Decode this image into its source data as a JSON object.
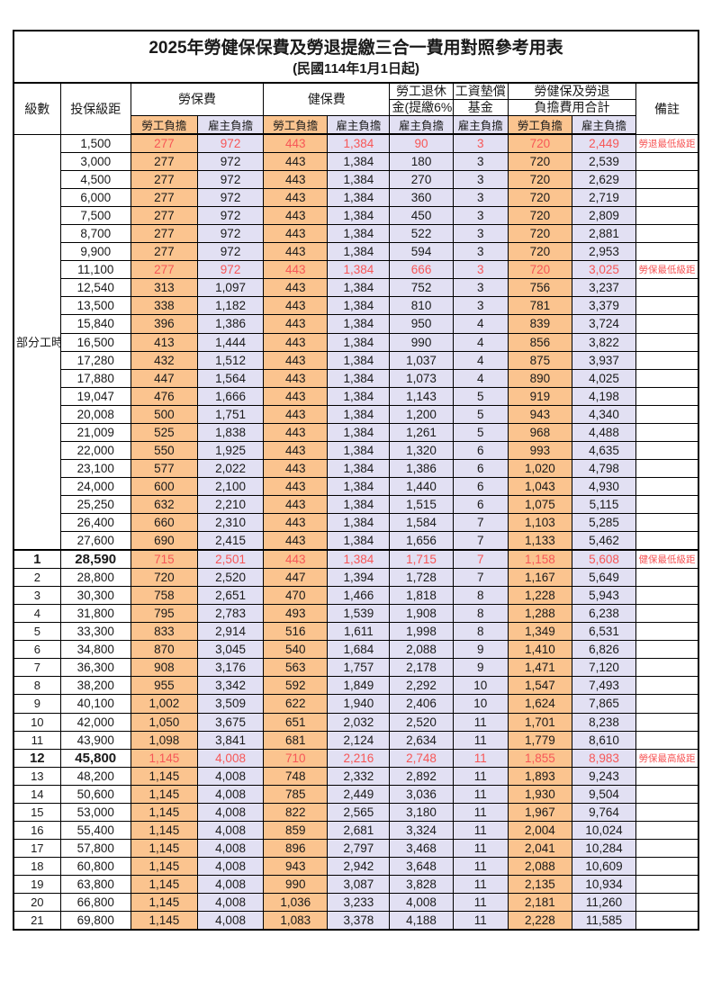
{
  "page": {
    "title": "2025年勞健保保費及勞退提繳三合一費用對照參考用表",
    "subtitle": "(民國114年1月1日起)"
  },
  "colors": {
    "employee_fill": "#FBC48F",
    "employer_fill": "#E2E0F3",
    "highlight_red": "#F75757"
  },
  "table": {
    "header": {
      "level": "級數",
      "bracket": "投保級距",
      "labor_fee": "勞保費",
      "health_fee": "健保費",
      "pension_line1": "勞工退休",
      "pension_line2": "金(提繳6%)",
      "wage_fund_line1": "工資墊償",
      "wage_fund_line2": "基金",
      "total_line1": "勞健保及勞退",
      "total_line2": "負擔費用合計",
      "remark": "備註",
      "employee": "勞工負擔",
      "employer": "雇主負擔"
    },
    "part_time_label": "部分工時",
    "part_time_rowspan": 23,
    "rows": [
      {
        "level": "",
        "bracket": "1,500",
        "li_emp": "277",
        "li_er": "972",
        "hi_emp": "443",
        "hi_er": "1,384",
        "pension": "90",
        "wage_fund": "3",
        "tot_emp": "720",
        "tot_er": "2,449",
        "remark": "勞退最低級距",
        "red": true
      },
      {
        "level": "",
        "bracket": "3,000",
        "li_emp": "277",
        "li_er": "972",
        "hi_emp": "443",
        "hi_er": "1,384",
        "pension": "180",
        "wage_fund": "3",
        "tot_emp": "720",
        "tot_er": "2,539",
        "remark": ""
      },
      {
        "level": "",
        "bracket": "4,500",
        "li_emp": "277",
        "li_er": "972",
        "hi_emp": "443",
        "hi_er": "1,384",
        "pension": "270",
        "wage_fund": "3",
        "tot_emp": "720",
        "tot_er": "2,629",
        "remark": ""
      },
      {
        "level": "",
        "bracket": "6,000",
        "li_emp": "277",
        "li_er": "972",
        "hi_emp": "443",
        "hi_er": "1,384",
        "pension": "360",
        "wage_fund": "3",
        "tot_emp": "720",
        "tot_er": "2,719",
        "remark": ""
      },
      {
        "level": "",
        "bracket": "7,500",
        "li_emp": "277",
        "li_er": "972",
        "hi_emp": "443",
        "hi_er": "1,384",
        "pension": "450",
        "wage_fund": "3",
        "tot_emp": "720",
        "tot_er": "2,809",
        "remark": ""
      },
      {
        "level": "",
        "bracket": "8,700",
        "li_emp": "277",
        "li_er": "972",
        "hi_emp": "443",
        "hi_er": "1,384",
        "pension": "522",
        "wage_fund": "3",
        "tot_emp": "720",
        "tot_er": "2,881",
        "remark": ""
      },
      {
        "level": "",
        "bracket": "9,900",
        "li_emp": "277",
        "li_er": "972",
        "hi_emp": "443",
        "hi_er": "1,384",
        "pension": "594",
        "wage_fund": "3",
        "tot_emp": "720",
        "tot_er": "2,953",
        "remark": ""
      },
      {
        "level": "",
        "bracket": "11,100",
        "li_emp": "277",
        "li_er": "972",
        "hi_emp": "443",
        "hi_er": "1,384",
        "pension": "666",
        "wage_fund": "3",
        "tot_emp": "720",
        "tot_er": "3,025",
        "remark": "勞保最低級距",
        "red": true
      },
      {
        "level": "",
        "bracket": "12,540",
        "li_emp": "313",
        "li_er": "1,097",
        "hi_emp": "443",
        "hi_er": "1,384",
        "pension": "752",
        "wage_fund": "3",
        "tot_emp": "756",
        "tot_er": "3,237",
        "remark": ""
      },
      {
        "level": "",
        "bracket": "13,500",
        "li_emp": "338",
        "li_er": "1,182",
        "hi_emp": "443",
        "hi_er": "1,384",
        "pension": "810",
        "wage_fund": "3",
        "tot_emp": "781",
        "tot_er": "3,379",
        "remark": ""
      },
      {
        "level": "",
        "bracket": "15,840",
        "li_emp": "396",
        "li_er": "1,386",
        "hi_emp": "443",
        "hi_er": "1,384",
        "pension": "950",
        "wage_fund": "4",
        "tot_emp": "839",
        "tot_er": "3,724",
        "remark": ""
      },
      {
        "level": "",
        "bracket": "16,500",
        "li_emp": "413",
        "li_er": "1,444",
        "hi_emp": "443",
        "hi_er": "1,384",
        "pension": "990",
        "wage_fund": "4",
        "tot_emp": "856",
        "tot_er": "3,822",
        "remark": ""
      },
      {
        "level": "",
        "bracket": "17,280",
        "li_emp": "432",
        "li_er": "1,512",
        "hi_emp": "443",
        "hi_er": "1,384",
        "pension": "1,037",
        "wage_fund": "4",
        "tot_emp": "875",
        "tot_er": "3,937",
        "remark": ""
      },
      {
        "level": "",
        "bracket": "17,880",
        "li_emp": "447",
        "li_er": "1,564",
        "hi_emp": "443",
        "hi_er": "1,384",
        "pension": "1,073",
        "wage_fund": "4",
        "tot_emp": "890",
        "tot_er": "4,025",
        "remark": ""
      },
      {
        "level": "",
        "bracket": "19,047",
        "li_emp": "476",
        "li_er": "1,666",
        "hi_emp": "443",
        "hi_er": "1,384",
        "pension": "1,143",
        "wage_fund": "5",
        "tot_emp": "919",
        "tot_er": "4,198",
        "remark": ""
      },
      {
        "level": "",
        "bracket": "20,008",
        "li_emp": "500",
        "li_er": "1,751",
        "hi_emp": "443",
        "hi_er": "1,384",
        "pension": "1,200",
        "wage_fund": "5",
        "tot_emp": "943",
        "tot_er": "4,340",
        "remark": ""
      },
      {
        "level": "",
        "bracket": "21,009",
        "li_emp": "525",
        "li_er": "1,838",
        "hi_emp": "443",
        "hi_er": "1,384",
        "pension": "1,261",
        "wage_fund": "5",
        "tot_emp": "968",
        "tot_er": "4,488",
        "remark": ""
      },
      {
        "level": "",
        "bracket": "22,000",
        "li_emp": "550",
        "li_er": "1,925",
        "hi_emp": "443",
        "hi_er": "1,384",
        "pension": "1,320",
        "wage_fund": "6",
        "tot_emp": "993",
        "tot_er": "4,635",
        "remark": ""
      },
      {
        "level": "",
        "bracket": "23,100",
        "li_emp": "577",
        "li_er": "2,022",
        "hi_emp": "443",
        "hi_er": "1,384",
        "pension": "1,386",
        "wage_fund": "6",
        "tot_emp": "1,020",
        "tot_er": "4,798",
        "remark": ""
      },
      {
        "level": "",
        "bracket": "24,000",
        "li_emp": "600",
        "li_er": "2,100",
        "hi_emp": "443",
        "hi_er": "1,384",
        "pension": "1,440",
        "wage_fund": "6",
        "tot_emp": "1,043",
        "tot_er": "4,930",
        "remark": ""
      },
      {
        "level": "",
        "bracket": "25,250",
        "li_emp": "632",
        "li_er": "2,210",
        "hi_emp": "443",
        "hi_er": "1,384",
        "pension": "1,515",
        "wage_fund": "6",
        "tot_emp": "1,075",
        "tot_er": "5,115",
        "remark": ""
      },
      {
        "level": "",
        "bracket": "26,400",
        "li_emp": "660",
        "li_er": "2,310",
        "hi_emp": "443",
        "hi_er": "1,384",
        "pension": "1,584",
        "wage_fund": "7",
        "tot_emp": "1,103",
        "tot_er": "5,285",
        "remark": ""
      },
      {
        "level": "",
        "bracket": "27,600",
        "li_emp": "690",
        "li_er": "2,415",
        "hi_emp": "443",
        "hi_er": "1,384",
        "pension": "1,656",
        "wage_fund": "7",
        "tot_emp": "1,133",
        "tot_er": "5,462",
        "remark": ""
      },
      {
        "level": "1",
        "bracket": "28,590",
        "li_emp": "715",
        "li_er": "2,501",
        "hi_emp": "443",
        "hi_er": "1,384",
        "pension": "1,715",
        "wage_fund": "7",
        "tot_emp": "1,158",
        "tot_er": "5,608",
        "remark": "健保最低級距",
        "red": true,
        "key": true,
        "thick_top": true
      },
      {
        "level": "2",
        "bracket": "28,800",
        "li_emp": "720",
        "li_er": "2,520",
        "hi_emp": "447",
        "hi_er": "1,394",
        "pension": "1,728",
        "wage_fund": "7",
        "tot_emp": "1,167",
        "tot_er": "5,649",
        "remark": ""
      },
      {
        "level": "3",
        "bracket": "30,300",
        "li_emp": "758",
        "li_er": "2,651",
        "hi_emp": "470",
        "hi_er": "1,466",
        "pension": "1,818",
        "wage_fund": "8",
        "tot_emp": "1,228",
        "tot_er": "5,943",
        "remark": ""
      },
      {
        "level": "4",
        "bracket": "31,800",
        "li_emp": "795",
        "li_er": "2,783",
        "hi_emp": "493",
        "hi_er": "1,539",
        "pension": "1,908",
        "wage_fund": "8",
        "tot_emp": "1,288",
        "tot_er": "6,238",
        "remark": ""
      },
      {
        "level": "5",
        "bracket": "33,300",
        "li_emp": "833",
        "li_er": "2,914",
        "hi_emp": "516",
        "hi_er": "1,611",
        "pension": "1,998",
        "wage_fund": "8",
        "tot_emp": "1,349",
        "tot_er": "6,531",
        "remark": ""
      },
      {
        "level": "6",
        "bracket": "34,800",
        "li_emp": "870",
        "li_er": "3,045",
        "hi_emp": "540",
        "hi_er": "1,684",
        "pension": "2,088",
        "wage_fund": "9",
        "tot_emp": "1,410",
        "tot_er": "6,826",
        "remark": ""
      },
      {
        "level": "7",
        "bracket": "36,300",
        "li_emp": "908",
        "li_er": "3,176",
        "hi_emp": "563",
        "hi_er": "1,757",
        "pension": "2,178",
        "wage_fund": "9",
        "tot_emp": "1,471",
        "tot_er": "7,120",
        "remark": ""
      },
      {
        "level": "8",
        "bracket": "38,200",
        "li_emp": "955",
        "li_er": "3,342",
        "hi_emp": "592",
        "hi_er": "1,849",
        "pension": "2,292",
        "wage_fund": "10",
        "tot_emp": "1,547",
        "tot_er": "7,493",
        "remark": ""
      },
      {
        "level": "9",
        "bracket": "40,100",
        "li_emp": "1,002",
        "li_er": "3,509",
        "hi_emp": "622",
        "hi_er": "1,940",
        "pension": "2,406",
        "wage_fund": "10",
        "tot_emp": "1,624",
        "tot_er": "7,865",
        "remark": ""
      },
      {
        "level": "10",
        "bracket": "42,000",
        "li_emp": "1,050",
        "li_er": "3,675",
        "hi_emp": "651",
        "hi_er": "2,032",
        "pension": "2,520",
        "wage_fund": "11",
        "tot_emp": "1,701",
        "tot_er": "8,238",
        "remark": ""
      },
      {
        "level": "11",
        "bracket": "43,900",
        "li_emp": "1,098",
        "li_er": "3,841",
        "hi_emp": "681",
        "hi_er": "2,124",
        "pension": "2,634",
        "wage_fund": "11",
        "tot_emp": "1,779",
        "tot_er": "8,610",
        "remark": ""
      },
      {
        "level": "12",
        "bracket": "45,800",
        "li_emp": "1,145",
        "li_er": "4,008",
        "hi_emp": "710",
        "hi_er": "2,216",
        "pension": "2,748",
        "wage_fund": "11",
        "tot_emp": "1,855",
        "tot_er": "8,983",
        "remark": "勞保最高級距",
        "red": true,
        "key": true
      },
      {
        "level": "13",
        "bracket": "48,200",
        "li_emp": "1,145",
        "li_er": "4,008",
        "hi_emp": "748",
        "hi_er": "2,332",
        "pension": "2,892",
        "wage_fund": "11",
        "tot_emp": "1,893",
        "tot_er": "9,243",
        "remark": ""
      },
      {
        "level": "14",
        "bracket": "50,600",
        "li_emp": "1,145",
        "li_er": "4,008",
        "hi_emp": "785",
        "hi_er": "2,449",
        "pension": "3,036",
        "wage_fund": "11",
        "tot_emp": "1,930",
        "tot_er": "9,504",
        "remark": ""
      },
      {
        "level": "15",
        "bracket": "53,000",
        "li_emp": "1,145",
        "li_er": "4,008",
        "hi_emp": "822",
        "hi_er": "2,565",
        "pension": "3,180",
        "wage_fund": "11",
        "tot_emp": "1,967",
        "tot_er": "9,764",
        "remark": ""
      },
      {
        "level": "16",
        "bracket": "55,400",
        "li_emp": "1,145",
        "li_er": "4,008",
        "hi_emp": "859",
        "hi_er": "2,681",
        "pension": "3,324",
        "wage_fund": "11",
        "tot_emp": "2,004",
        "tot_er": "10,024",
        "remark": ""
      },
      {
        "level": "17",
        "bracket": "57,800",
        "li_emp": "1,145",
        "li_er": "4,008",
        "hi_emp": "896",
        "hi_er": "2,797",
        "pension": "3,468",
        "wage_fund": "11",
        "tot_emp": "2,041",
        "tot_er": "10,284",
        "remark": ""
      },
      {
        "level": "18",
        "bracket": "60,800",
        "li_emp": "1,145",
        "li_er": "4,008",
        "hi_emp": "943",
        "hi_er": "2,942",
        "pension": "3,648",
        "wage_fund": "11",
        "tot_emp": "2,088",
        "tot_er": "10,609",
        "remark": ""
      },
      {
        "level": "19",
        "bracket": "63,800",
        "li_emp": "1,145",
        "li_er": "4,008",
        "hi_emp": "990",
        "hi_er": "3,087",
        "pension": "3,828",
        "wage_fund": "11",
        "tot_emp": "2,135",
        "tot_er": "10,934",
        "remark": ""
      },
      {
        "level": "20",
        "bracket": "66,800",
        "li_emp": "1,145",
        "li_er": "4,008",
        "hi_emp": "1,036",
        "hi_er": "3,233",
        "pension": "4,008",
        "wage_fund": "11",
        "tot_emp": "2,181",
        "tot_er": "11,260",
        "remark": ""
      },
      {
        "level": "21",
        "bracket": "69,800",
        "li_emp": "1,145",
        "li_er": "4,008",
        "hi_emp": "1,083",
        "hi_er": "3,378",
        "pension": "4,188",
        "wage_fund": "11",
        "tot_emp": "2,228",
        "tot_er": "11,585",
        "remark": ""
      }
    ]
  }
}
